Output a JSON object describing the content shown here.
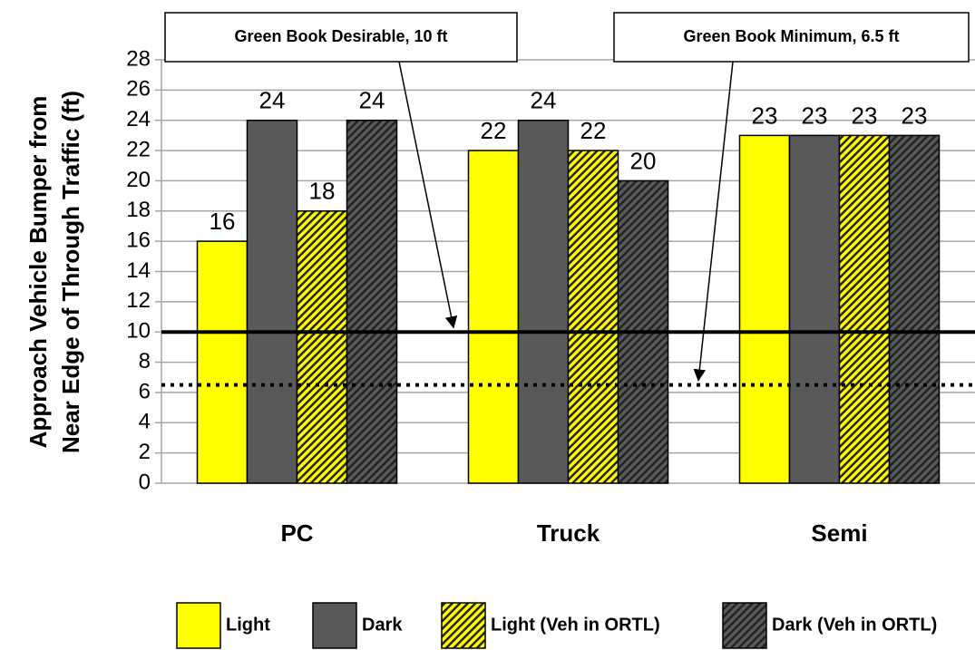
{
  "chart_data": {
    "type": "bar",
    "y_label": [
      "Approach Vehicle Bumper from",
      "Near Edge of Through Traffic (ft)"
    ],
    "categories": [
      "PC",
      "Truck",
      "Semi"
    ],
    "series": [
      {
        "name": "Light",
        "color": "#ffff00",
        "hatch": false,
        "values": [
          16,
          22,
          23
        ]
      },
      {
        "name": "Dark",
        "color": "#595959",
        "hatch": false,
        "values": [
          24,
          24,
          23
        ]
      },
      {
        "name": "Light (Veh in ORTL)",
        "color": "#ffff00",
        "hatch": true,
        "values": [
          18,
          22,
          23
        ]
      },
      {
        "name": "Dark (Veh in ORTL)",
        "color": "#595959",
        "hatch": true,
        "values": [
          24,
          20,
          23
        ]
      }
    ],
    "ylim": [
      0,
      28
    ],
    "yticks": [
      0,
      2,
      4,
      6,
      8,
      10,
      12,
      14,
      16,
      18,
      20,
      22,
      24,
      26,
      28
    ],
    "grid": true,
    "reference_lines": [
      {
        "label": "Green Book Desirable, 10 ft",
        "value": 10,
        "style": "solid"
      },
      {
        "label": "Green Book Minimum, 6.5 ft",
        "value": 6.5,
        "style": "dotted"
      }
    ],
    "legend": "bottom"
  }
}
